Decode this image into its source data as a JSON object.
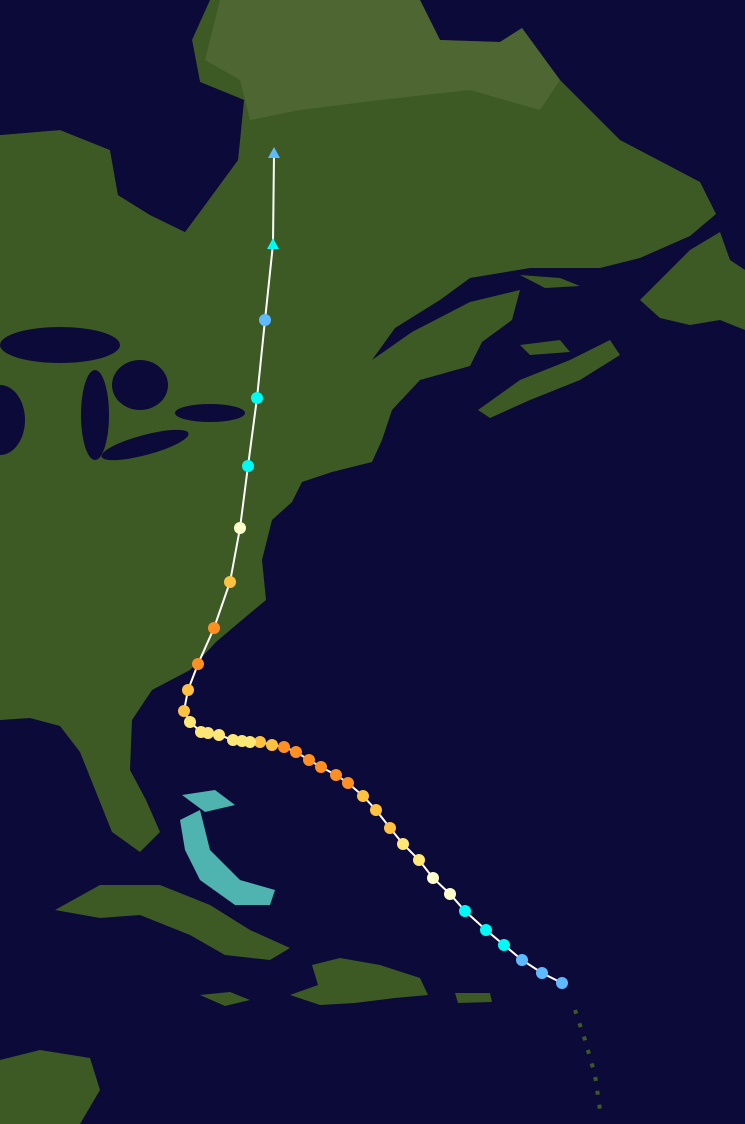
{
  "map": {
    "colors": {
      "ocean": "#0c0a38",
      "land": "#3d5a25",
      "land_dark": "#2f4a1c",
      "shallow": "#4fb3b0",
      "track_line": "#ffffff"
    },
    "category_colors": {
      "TD": "#5ebaff",
      "TS": "#00faf4",
      "C1": "#ffffcc",
      "C2": "#ffe775",
      "C3": "#ffc140",
      "C4": "#ff8f20"
    },
    "track": [
      {
        "cat": "TD",
        "shape": "circle"
      },
      {
        "cat": "TD",
        "shape": "circle"
      },
      {
        "cat": "TD",
        "shape": "circle"
      },
      {
        "cat": "TS",
        "shape": "circle"
      },
      {
        "cat": "TS",
        "shape": "circle"
      },
      {
        "cat": "TS",
        "shape": "circle"
      },
      {
        "cat": "C1",
        "shape": "circle"
      },
      {
        "cat": "C1",
        "shape": "circle"
      },
      {
        "cat": "C2",
        "shape": "circle"
      },
      {
        "cat": "C2",
        "shape": "circle"
      },
      {
        "cat": "C3",
        "shape": "circle"
      },
      {
        "cat": "C3",
        "shape": "circle"
      },
      {
        "cat": "C3",
        "shape": "circle"
      },
      {
        "cat": "C4",
        "shape": "circle"
      },
      {
        "cat": "C4",
        "shape": "circle"
      },
      {
        "cat": "C4",
        "shape": "circle"
      },
      {
        "cat": "C4",
        "shape": "circle"
      },
      {
        "cat": "C4",
        "shape": "circle"
      },
      {
        "cat": "C4",
        "shape": "circle"
      },
      {
        "cat": "C3",
        "shape": "circle"
      },
      {
        "cat": "C3",
        "shape": "circle"
      },
      {
        "cat": "C2",
        "shape": "circle"
      },
      {
        "cat": "C2",
        "shape": "circle"
      },
      {
        "cat": "C2",
        "shape": "circle"
      },
      {
        "cat": "C2",
        "shape": "circle"
      },
      {
        "cat": "C2",
        "shape": "circle"
      },
      {
        "cat": "C2",
        "shape": "circle"
      },
      {
        "cat": "C2",
        "shape": "circle"
      },
      {
        "cat": "C3",
        "shape": "circle"
      },
      {
        "cat": "C3",
        "shape": "circle"
      },
      {
        "cat": "C4",
        "shape": "circle"
      },
      {
        "cat": "C4",
        "shape": "circle"
      },
      {
        "cat": "C3",
        "shape": "circle"
      },
      {
        "cat": "C1",
        "shape": "circle"
      },
      {
        "cat": "TS",
        "shape": "circle"
      },
      {
        "cat": "TS",
        "shape": "circle"
      },
      {
        "cat": "TD",
        "shape": "circle"
      },
      {
        "cat": "TS",
        "shape": "triangle"
      },
      {
        "cat": "TD",
        "shape": "triangle"
      }
    ]
  }
}
